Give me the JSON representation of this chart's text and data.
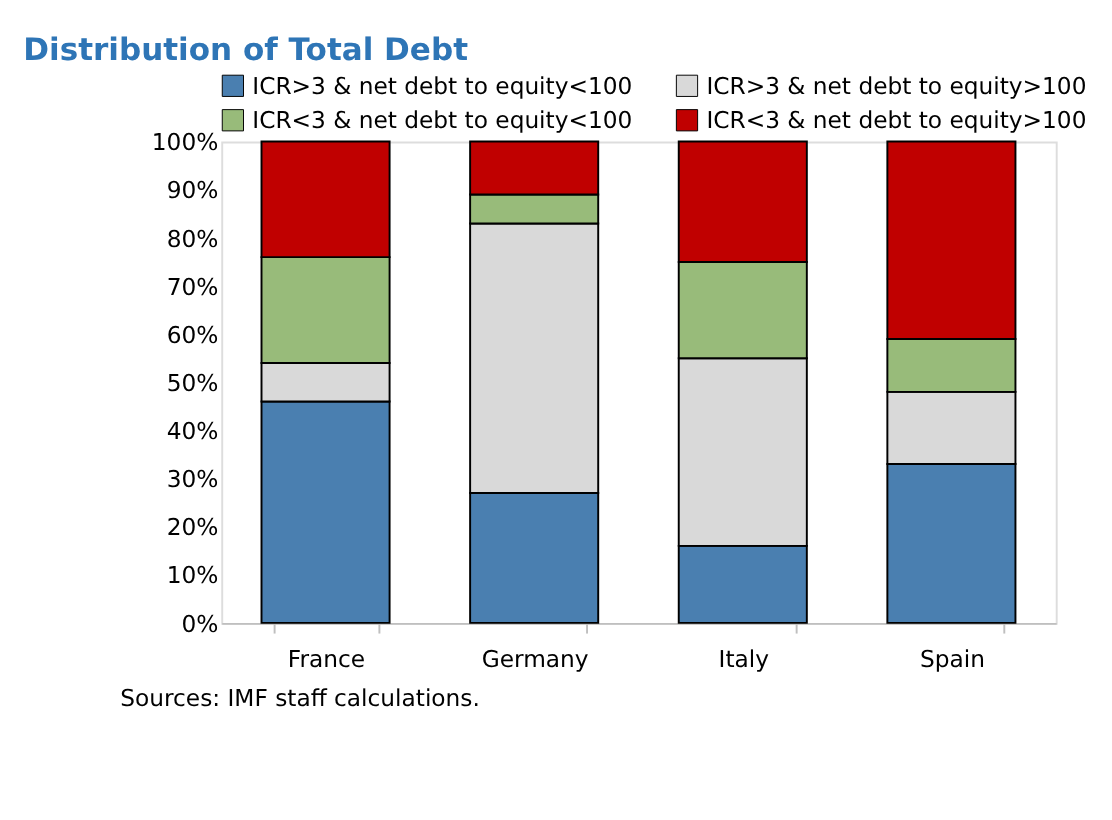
{
  "chart_data": {
    "type": "bar",
    "stacked": true,
    "title": "Distribution of Total Debt",
    "categories": [
      "France",
      "Germany",
      "Italy",
      "Spain"
    ],
    "series": [
      {
        "name": "ICR>3 & net debt to equity<100",
        "color": "#4a7fb0",
        "values": [
          46,
          27,
          16,
          33
        ]
      },
      {
        "name": "ICR>3 & net debt to equity>100",
        "color": "#d9d9d9",
        "values": [
          8,
          56,
          39,
          15
        ]
      },
      {
        "name": "ICR<3 & net debt to equity<100",
        "color": "#98bb7a",
        "values": [
          22,
          6,
          20,
          11
        ]
      },
      {
        "name": "ICR<3 & net debt to equity>100",
        "color": "#c00000",
        "values": [
          24,
          11,
          25,
          41
        ]
      }
    ],
    "ylim": [
      0,
      100
    ],
    "yticks": [
      {
        "value": 0,
        "label": "0%"
      },
      {
        "value": 10,
        "label": "10%"
      },
      {
        "value": 20,
        "label": "20%"
      },
      {
        "value": 30,
        "label": "30%"
      },
      {
        "value": 40,
        "label": "40%"
      },
      {
        "value": 50,
        "label": "50%"
      },
      {
        "value": 60,
        "label": "60%"
      },
      {
        "value": 70,
        "label": "70%"
      },
      {
        "value": 80,
        "label": "80%"
      },
      {
        "value": 90,
        "label": "90%"
      },
      {
        "value": 100,
        "label": "100%"
      }
    ],
    "grid": false,
    "legend": "top",
    "annotations": [
      "Sources: IMF staff calculations."
    ]
  }
}
